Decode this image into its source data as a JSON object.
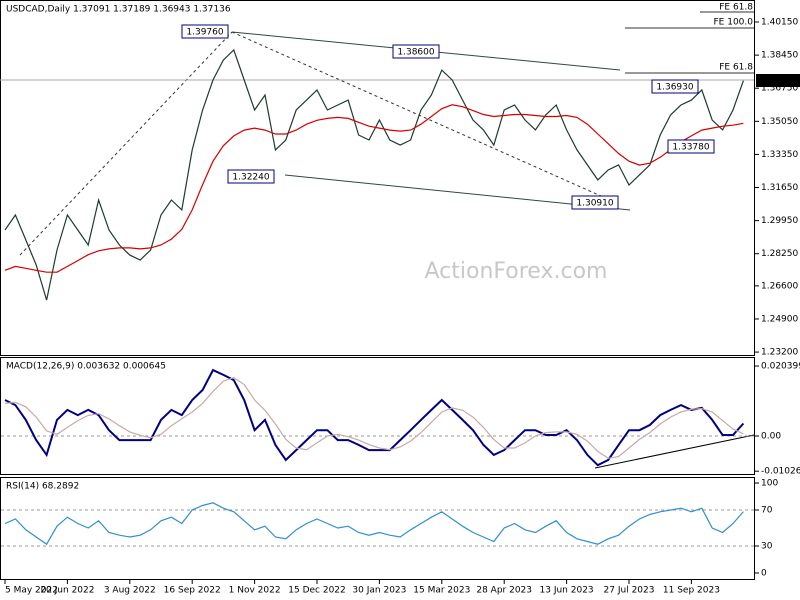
{
  "chart_data": [
    {
      "type": "line",
      "title": "USDCAD,Daily  1.37091 1.37189 1.36943 1.37136",
      "watermark": "ActionForex.com",
      "annotations": [
        "1.39760",
        "1.38600",
        "1.36930",
        "1.32240",
        "1.30910",
        "1.33780"
      ],
      "fib_labels": [
        "FE 61.8",
        "FE 100.0",
        "FE 61.8"
      ],
      "last_price_label": "1.37136",
      "ylim": [
        1.2305,
        1.4128
      ],
      "yticks": [
        {
          "value": 1.4015,
          "label": "1.40150"
        },
        {
          "value": 1.3845,
          "label": "1.38450"
        },
        {
          "value": 1.3675,
          "label": "1.36750"
        },
        {
          "value": 1.3505,
          "label": "1.35050"
        },
        {
          "value": 1.3335,
          "label": "1.33350"
        },
        {
          "value": 1.3165,
          "label": "1.31650"
        },
        {
          "value": 1.2995,
          "label": "1.29950"
        },
        {
          "value": 1.2825,
          "label": "1.28250"
        },
        {
          "value": 1.266,
          "label": "1.26600"
        },
        {
          "value": 1.249,
          "label": "1.24900"
        },
        {
          "value": 1.232,
          "label": "1.23200"
        }
      ],
      "series": [
        {
          "name": "Close",
          "color": "#1f3b2c",
          "values": [
            1.2947,
            1.3024,
            1.2896,
            1.2767,
            1.2587,
            1.2844,
            1.3024,
            1.2947,
            1.287,
            1.3101,
            1.2947,
            1.287,
            1.2818,
            1.2793,
            1.2844,
            1.3024,
            1.3101,
            1.305,
            1.3358,
            1.3563,
            1.3717,
            1.382,
            1.3871,
            1.3717,
            1.3563,
            1.364,
            1.3358,
            1.3409,
            1.3563,
            1.3614,
            1.3666,
            1.3563,
            1.3589,
            1.3614,
            1.3435,
            1.3409,
            1.3512,
            1.3409,
            1.3383,
            1.3409,
            1.3563,
            1.364,
            1.3768,
            1.3717,
            1.3614,
            1.3512,
            1.3461,
            1.3383,
            1.3563,
            1.3589,
            1.3512,
            1.3461,
            1.3538,
            1.3589,
            1.3461,
            1.3358,
            1.3281,
            1.3204,
            1.3255,
            1.3281,
            1.3178,
            1.323,
            1.3281,
            1.3435,
            1.3538,
            1.3589,
            1.3614,
            1.3666,
            1.3512,
            1.3461,
            1.3563,
            1.37136
          ]
        },
        {
          "name": "MA",
          "color": "#d40000",
          "values": [
            1.274,
            1.276,
            1.275,
            1.274,
            1.273,
            1.273,
            1.276,
            1.279,
            1.282,
            1.284,
            1.285,
            1.2855,
            1.2855,
            1.285,
            1.2855,
            1.287,
            1.29,
            1.295,
            1.305,
            1.318,
            1.33,
            1.338,
            1.343,
            1.346,
            1.347,
            1.346,
            1.344,
            1.344,
            1.346,
            1.349,
            1.351,
            1.352,
            1.3525,
            1.352,
            1.35,
            1.348,
            1.347,
            1.346,
            1.3455,
            1.346,
            1.349,
            1.353,
            1.357,
            1.359,
            1.358,
            1.356,
            1.354,
            1.353,
            1.3535,
            1.354,
            1.354,
            1.3535,
            1.353,
            1.353,
            1.3535,
            1.3525,
            1.349,
            1.344,
            1.339,
            1.334,
            1.33,
            1.328,
            1.329,
            1.332,
            1.336,
            1.34,
            1.343,
            1.346,
            1.347,
            1.348,
            1.3485,
            1.3495
          ]
        }
      ]
    },
    {
      "type": "line",
      "title": "MACD(12,26,9) 0.003632 0.000645",
      "ylim": [
        -0.01137,
        0.02303
      ],
      "yticks": [
        0.020399,
        {
          "value": 0,
          "label": "0.00"
        },
        -0.01026
      ],
      "reference_lines": [
        0
      ],
      "series": [
        {
          "name": "MACD",
          "color": "#000080",
          "values": [
            0.0105,
            0.009,
            0.0047,
            -0.0012,
            -0.0055,
            0.0047,
            0.0076,
            0.0061,
            0.0076,
            0.0061,
            0.0017,
            -0.0012,
            -0.0012,
            -0.0012,
            -0.0012,
            0.0047,
            0.0076,
            0.0061,
            0.0105,
            0.0134,
            0.0192,
            0.0178,
            0.0163,
            0.0105,
            0.0017,
            0.0047,
            -0.0026,
            -0.007,
            -0.0041,
            -0.0012,
            0.0017,
            0.0017,
            -0.0012,
            -0.0012,
            -0.0026,
            -0.0041,
            -0.0041,
            -0.0041,
            -0.0012,
            0.0017,
            0.0047,
            0.0076,
            0.0105,
            0.0076,
            0.0047,
            0.0017,
            -0.0026,
            -0.0055,
            -0.0041,
            -0.0012,
            0.0017,
            0.0017,
            0.0003,
            0.0003,
            0.0017,
            -0.0012,
            -0.0055,
            -0.0085,
            -0.007,
            -0.0026,
            0.0017,
            0.0017,
            0.0032,
            0.0061,
            0.0076,
            0.009,
            0.0076,
            0.0082,
            0.0047,
            0.0003,
            0.0003,
            0.003632
          ]
        },
        {
          "name": "Signal",
          "color": "#c8a8a8",
          "values": [
            0.0095,
            0.0098,
            0.0085,
            0.0055,
            0.0015,
            0.0005,
            0.0025,
            0.0045,
            0.006,
            0.0065,
            0.005,
            0.003,
            0.0012,
            0.0002,
            -0.0005,
            0.0005,
            0.003,
            0.005,
            0.007,
            0.0095,
            0.013,
            0.016,
            0.017,
            0.015,
            0.0105,
            0.0075,
            0.0035,
            -0.001,
            -0.0035,
            -0.004,
            -0.002,
            0.0,
            0.0005,
            -0.0002,
            -0.0012,
            -0.0025,
            -0.0035,
            -0.004,
            -0.0032,
            -0.0015,
            0.001,
            0.004,
            0.007,
            0.0082,
            0.0075,
            0.0055,
            0.0025,
            -0.001,
            -0.0035,
            -0.0035,
            -0.002,
            0.0,
            0.001,
            0.0012,
            0.0012,
            0.0005,
            -0.0015,
            -0.0045,
            -0.0065,
            -0.006,
            -0.0035,
            -0.001,
            0.001,
            0.0035,
            0.0055,
            0.007,
            0.0078,
            0.008,
            0.007,
            0.0045,
            0.002,
            0.000645
          ]
        }
      ]
    },
    {
      "type": "line",
      "title": "RSI(14) 68.2892",
      "ylim": [
        -7.8,
        106.7
      ],
      "yticks": [
        100,
        70,
        30,
        0
      ],
      "reference_lines": [
        70,
        30
      ],
      "categories": [
        "5 May 2022",
        null,
        null,
        null,
        null,
        null,
        "20 Jun 2022",
        null,
        null,
        null,
        null,
        null,
        "3 Aug 2022",
        null,
        null,
        null,
        null,
        null,
        "16 Sep 2022",
        null,
        null,
        null,
        null,
        null,
        "1 Nov 2022",
        null,
        null,
        null,
        null,
        null,
        "15 Dec 2022",
        null,
        null,
        null,
        null,
        null,
        "30 Jan 2023",
        null,
        null,
        null,
        null,
        null,
        "15 Mar 2023",
        null,
        null,
        null,
        null,
        null,
        "28 Apr 2023",
        null,
        null,
        null,
        null,
        null,
        "13 Jun 2023",
        null,
        null,
        null,
        null,
        null,
        "27 Jul 2023",
        null,
        null,
        null,
        null,
        null,
        "11 Sep 2023",
        null,
        null,
        null,
        null,
        null
      ],
      "series": [
        {
          "name": "RSI",
          "color": "#2f8fd0",
          "values": [
            55,
            60,
            48,
            40,
            32,
            52,
            62,
            55,
            50,
            58,
            45,
            42,
            40,
            42,
            48,
            58,
            62,
            55,
            70,
            75,
            78,
            72,
            68,
            58,
            48,
            52,
            40,
            38,
            48,
            55,
            60,
            55,
            50,
            52,
            45,
            42,
            45,
            42,
            40,
            48,
            55,
            62,
            68,
            60,
            52,
            45,
            40,
            35,
            50,
            55,
            48,
            45,
            52,
            58,
            45,
            38,
            35,
            32,
            38,
            42,
            52,
            60,
            65,
            68,
            70,
            72,
            68,
            72,
            50,
            45,
            55,
            68.2892
          ]
        }
      ]
    }
  ]
}
